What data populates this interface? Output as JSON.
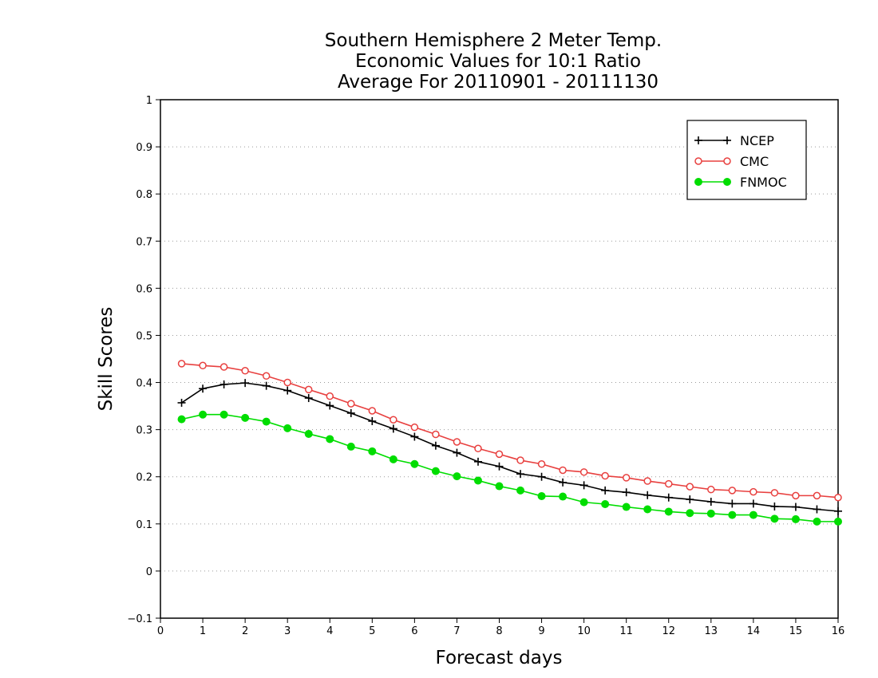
{
  "chart_data": {
    "type": "line",
    "title_lines": [
      "Southern Hemisphere 2 Meter Temp.",
      "Economic Values for 10:1 Ratio",
      "Average For 20110901 - 20111130"
    ],
    "xlabel": "Forecast days",
    "ylabel": "Skill Scores",
    "xlim": [
      0,
      16
    ],
    "ylim": [
      -0.1,
      1
    ],
    "xticks": [
      "0",
      "1",
      "2",
      "3",
      "4",
      "5",
      "6",
      "7",
      "8",
      "9",
      "10",
      "11",
      "12",
      "13",
      "14",
      "15",
      "16"
    ],
    "yticks": [
      "−0.1",
      "0",
      "0.1",
      "0.2",
      "0.3",
      "0.4",
      "0.5",
      "0.6",
      "0.7",
      "0.8",
      "0.9",
      "1"
    ],
    "grid": "horizontal dotted",
    "legend_position": "top-right",
    "x": [
      0.5,
      1,
      1.5,
      2,
      2.5,
      3,
      3.5,
      4,
      4.5,
      5,
      5.5,
      6,
      6.5,
      7,
      7.5,
      8,
      8.5,
      9,
      9.5,
      10,
      10.5,
      11,
      11.5,
      12,
      12.5,
      13,
      13.5,
      14,
      14.5,
      15,
      15.5,
      16
    ],
    "series": [
      {
        "name": "NCEP",
        "color": "#000000",
        "marker": "plus",
        "values": [
          0.357,
          0.387,
          0.396,
          0.399,
          0.393,
          0.383,
          0.367,
          0.351,
          0.335,
          0.318,
          0.302,
          0.285,
          0.266,
          0.251,
          0.232,
          0.222,
          0.206,
          0.2,
          0.188,
          0.182,
          0.171,
          0.167,
          0.161,
          0.156,
          0.152,
          0.147,
          0.143,
          0.143,
          0.137,
          0.136,
          0.131,
          0.127
        ]
      },
      {
        "name": "CMC",
        "color": "#e8403f",
        "marker": "open-circle",
        "values": [
          0.44,
          0.436,
          0.433,
          0.425,
          0.414,
          0.4,
          0.385,
          0.371,
          0.355,
          0.34,
          0.321,
          0.305,
          0.29,
          0.274,
          0.26,
          0.248,
          0.235,
          0.227,
          0.214,
          0.21,
          0.202,
          0.198,
          0.191,
          0.185,
          0.179,
          0.173,
          0.171,
          0.168,
          0.166,
          0.16,
          0.16,
          0.156
        ]
      },
      {
        "name": "FNMOC",
        "color": "#00dd00",
        "marker": "filled-circle",
        "values": [
          0.322,
          0.332,
          0.332,
          0.325,
          0.317,
          0.303,
          0.291,
          0.28,
          0.264,
          0.254,
          0.237,
          0.227,
          0.212,
          0.201,
          0.192,
          0.18,
          0.171,
          0.159,
          0.158,
          0.146,
          0.142,
          0.136,
          0.131,
          0.126,
          0.123,
          0.122,
          0.119,
          0.119,
          0.111,
          0.11,
          0.105,
          0.105
        ]
      }
    ]
  }
}
